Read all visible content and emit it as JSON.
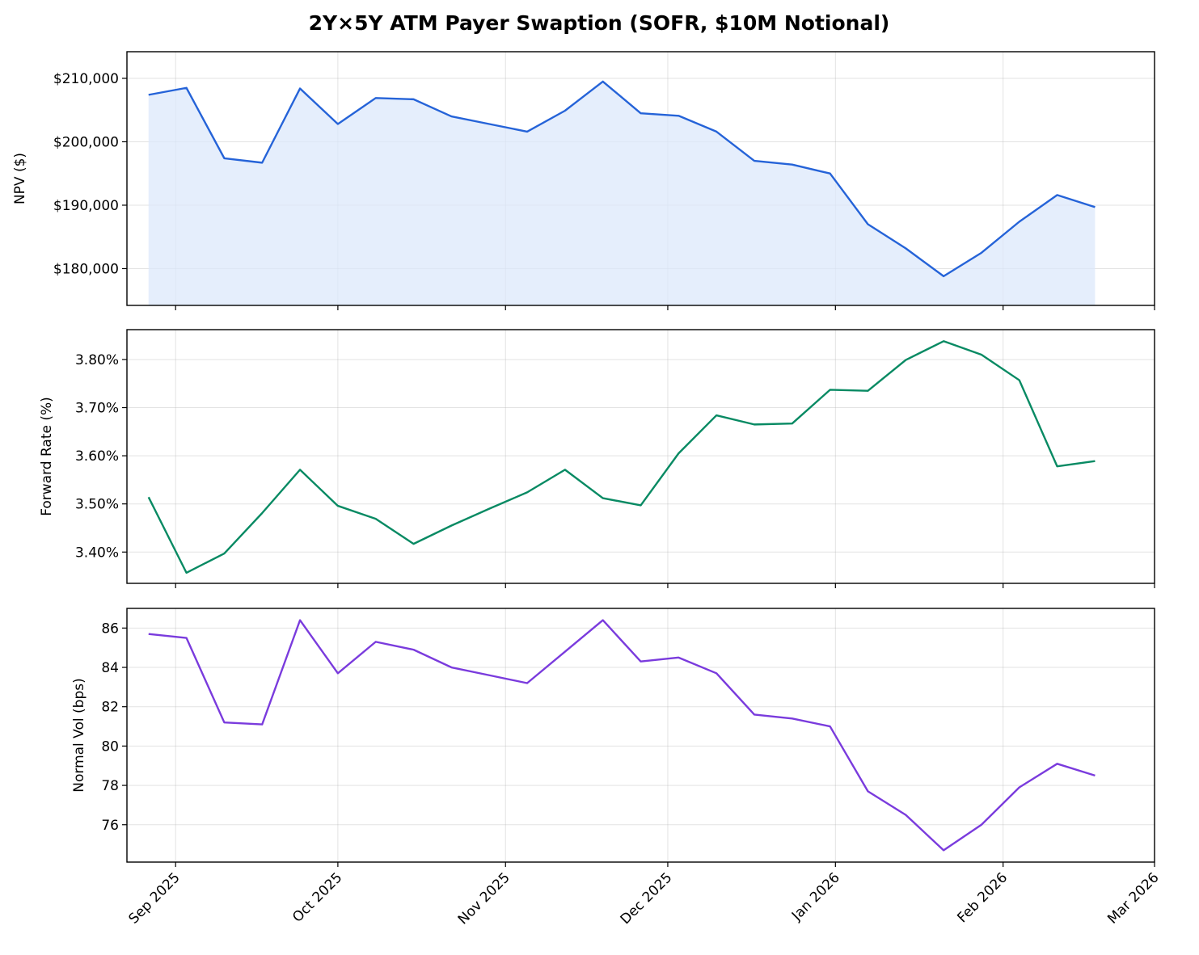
{
  "chart_data": {
    "type": "line",
    "title": "2Y×5Y ATM Payer Swaption (SOFR, $10M Notional)",
    "x": [
      "2025-08-27",
      "2025-09-03",
      "2025-09-10",
      "2025-09-17",
      "2025-09-24",
      "2025-10-01",
      "2025-10-08",
      "2025-10-15",
      "2025-10-22",
      "2025-10-29",
      "2025-11-05",
      "2025-11-12",
      "2025-11-19",
      "2025-11-26",
      "2025-12-03",
      "2025-12-10",
      "2025-12-17",
      "2025-12-24",
      "2025-12-31",
      "2026-01-07",
      "2026-01-14",
      "2026-01-21",
      "2026-01-28",
      "2026-02-04",
      "2026-02-11",
      "2026-02-18"
    ],
    "x_ticks": [
      {
        "date": "2025-09-01",
        "label": "Sep 2025"
      },
      {
        "date": "2025-10-01",
        "label": "Oct 2025"
      },
      {
        "date": "2025-11-01",
        "label": "Nov 2025"
      },
      {
        "date": "2025-12-01",
        "label": "Dec 2025"
      },
      {
        "date": "2026-01-01",
        "label": "Jan 2026"
      },
      {
        "date": "2026-02-01",
        "label": "Feb 2026"
      },
      {
        "date": "2026-03-01",
        "label": "Mar 2026"
      }
    ],
    "xlim": [
      "2025-08-23",
      "2026-03-01"
    ],
    "grid": true,
    "panels": [
      {
        "ylabel": "NPV ($)",
        "ylim": [
          174200,
          214200
        ],
        "y_ticks": [
          180000,
          190000,
          200000,
          210000
        ],
        "y_tick_labels": [
          "$180,000",
          "$190,000",
          "$200,000",
          "$210,000"
        ],
        "color": "#2563d8",
        "fill": true,
        "fill_color": "#dce8fb",
        "values": [
          207400,
          208500,
          197400,
          196700,
          208400,
          202800,
          206900,
          206700,
          204000,
          202800,
          201600,
          204900,
          209500,
          204500,
          204100,
          201600,
          197000,
          196400,
          195000,
          187000,
          183200,
          178800,
          182500,
          187400,
          191600,
          189700
        ]
      },
      {
        "ylabel": "Forward Rate (%)",
        "ylim": [
          3.335,
          3.862
        ],
        "y_ticks": [
          3.4,
          3.5,
          3.6,
          3.7,
          3.8
        ],
        "y_tick_labels": [
          "3.40%",
          "3.50%",
          "3.60%",
          "3.70%",
          "3.80%"
        ],
        "color": "#088a63",
        "fill": false,
        "values": [
          3.514,
          3.357,
          3.397,
          3.481,
          3.571,
          3.496,
          3.469,
          3.417,
          3.455,
          3.49,
          3.524,
          3.571,
          3.512,
          3.497,
          3.605,
          3.684,
          3.665,
          3.667,
          3.737,
          3.735,
          3.799,
          3.838,
          3.81,
          3.757,
          3.578,
          3.589
        ]
      },
      {
        "ylabel": "Normal Vol (bps)",
        "ylim": [
          74.1,
          87.0
        ],
        "y_ticks": [
          76,
          78,
          80,
          82,
          84,
          86
        ],
        "y_tick_labels": [
          "76",
          "78",
          "80",
          "82",
          "84",
          "86"
        ],
        "color": "#7a3bdd",
        "fill": false,
        "values": [
          85.7,
          85.5,
          81.2,
          81.1,
          86.4,
          83.7,
          85.3,
          84.9,
          84.0,
          83.6,
          83.2,
          84.8,
          86.4,
          84.3,
          84.5,
          83.7,
          81.6,
          81.4,
          81.0,
          77.7,
          76.5,
          74.7,
          76.0,
          77.9,
          79.1,
          78.5
        ]
      }
    ]
  }
}
